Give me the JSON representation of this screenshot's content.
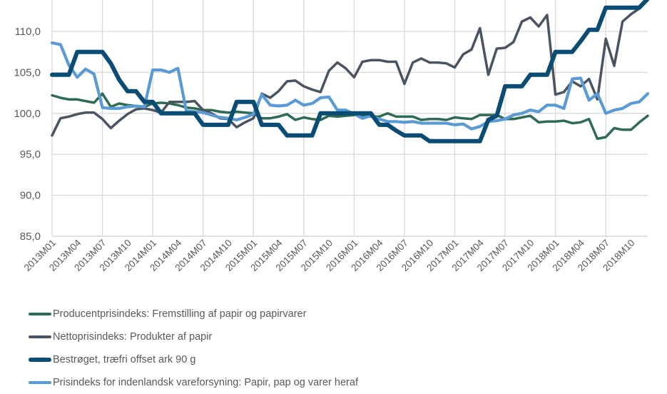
{
  "chart_data": {
    "type": "line",
    "title": "",
    "xlabel": "",
    "ylabel": "",
    "ylim": [
      85,
      113.5
    ],
    "yticks": [
      85,
      90,
      95,
      100,
      105,
      110
    ],
    "ytick_labels": [
      "85,0",
      "90,0",
      "95,0",
      "100,0",
      "105,0",
      "110,0"
    ],
    "grid": true,
    "legend_position": "bottom",
    "x": [
      "2013M01",
      "2013M02",
      "2013M03",
      "2013M04",
      "2013M05",
      "2013M06",
      "2013M07",
      "2013M08",
      "2013M09",
      "2013M10",
      "2013M11",
      "2013M12",
      "2014M01",
      "2014M02",
      "2014M03",
      "2014M04",
      "2014M05",
      "2014M06",
      "2014M07",
      "2014M08",
      "2014M09",
      "2014M10",
      "2014M11",
      "2014M12",
      "2015M01",
      "2015M02",
      "2015M03",
      "2015M04",
      "2015M05",
      "2015M06",
      "2015M07",
      "2015M08",
      "2015M09",
      "2015M10",
      "2015M11",
      "2015M12",
      "2016M01",
      "2016M02",
      "2016M03",
      "2016M04",
      "2016M05",
      "2016M06",
      "2016M07",
      "2016M08",
      "2016M09",
      "2016M10",
      "2016M11",
      "2016M12",
      "2017M01",
      "2017M02",
      "2017M03",
      "2017M04",
      "2017M05",
      "2017M06",
      "2017M07",
      "2017M08",
      "2017M09",
      "2017M10",
      "2017M11",
      "2017M12",
      "2018M01",
      "2018M02",
      "2018M03",
      "2018M04",
      "2018M05",
      "2018M06",
      "2018M07",
      "2018M08",
      "2018M09",
      "2018M10",
      "2018M11",
      "2018M12"
    ],
    "xtick_labels": [
      "2013M01",
      "2013M04",
      "2013M07",
      "2013M10",
      "2014M01",
      "2014M04",
      "2014M07",
      "2014M10",
      "2015M01",
      "2015M04",
      "2015M07",
      "2015M10",
      "2016M01",
      "2016M04",
      "2016M07",
      "2016M10",
      "2017M01",
      "2017M04",
      "2017M07",
      "2017M10",
      "2018M01",
      "2018M04",
      "2018M07",
      "2018M10"
    ],
    "series": [
      {
        "name": "Producentprisindeks: Fremstilling af papir og papirvarer",
        "color": "#2E6B52",
        "values": [
          102.2,
          101.9,
          101.7,
          101.7,
          101.5,
          101.3,
          102.4,
          100.8,
          101.2,
          101.0,
          100.9,
          100.8,
          101.2,
          101.3,
          101.2,
          101.0,
          100.7,
          100.6,
          100.4,
          100.4,
          100.2,
          100.1,
          100.2,
          100.1,
          100.0,
          99.4,
          99.4,
          99.6,
          99.9,
          99.2,
          99.5,
          99.3,
          99.2,
          99.7,
          99.6,
          99.7,
          99.8,
          99.7,
          99.6,
          99.6,
          100.0,
          99.6,
          99.6,
          99.6,
          99.2,
          99.3,
          99.3,
          99.2,
          99.5,
          99.4,
          99.3,
          99.8,
          99.8,
          99.8,
          99.3,
          99.3,
          99.5,
          99.7,
          98.9,
          99.0,
          99.0,
          99.1,
          98.8,
          98.9,
          99.3,
          96.9,
          97.1,
          98.2,
          98.0,
          98.0,
          98.9,
          99.7
        ]
      },
      {
        "name": "Nettoprisindeks: Produkter af papir",
        "color": "#4A5361",
        "values": [
          97.3,
          99.4,
          99.6,
          99.9,
          100.1,
          100.1,
          99.3,
          98.2,
          99.1,
          99.9,
          100.5,
          100.6,
          100.4,
          100.1,
          101.4,
          101.4,
          101.4,
          101.5,
          100.4,
          100.0,
          99.4,
          99.3,
          98.3,
          98.9,
          99.4,
          102.4,
          101.9,
          102.7,
          103.9,
          104.0,
          103.3,
          102.9,
          102.6,
          105.2,
          106.2,
          105.5,
          104.4,
          106.3,
          106.5,
          106.5,
          106.3,
          106.3,
          103.6,
          106.2,
          106.7,
          106.2,
          106.2,
          106.1,
          105.6,
          107.2,
          107.8,
          110.4,
          104.7,
          107.9,
          108.0,
          108.7,
          111.2,
          111.7,
          110.6,
          112.0,
          102.3,
          102.6,
          103.9,
          103.3,
          104.2,
          101.7,
          109.1,
          105.8,
          111.2,
          112.1,
          112.8,
          113.8
        ]
      },
      {
        "name": "Bestrøget, træfri offset ark 90 g",
        "color": "#0A4C74",
        "values": [
          104.7,
          104.7,
          104.7,
          107.5,
          107.5,
          107.5,
          107.5,
          106.1,
          104.1,
          102.7,
          102.7,
          101.4,
          101.4,
          100.0,
          100.0,
          100.0,
          100.0,
          100.0,
          98.6,
          98.6,
          98.6,
          98.6,
          101.4,
          101.4,
          101.4,
          98.6,
          98.6,
          98.6,
          97.3,
          97.3,
          97.3,
          97.3,
          100.0,
          100.0,
          100.0,
          100.0,
          100.0,
          100.0,
          100.0,
          98.6,
          98.6,
          97.9,
          97.3,
          97.3,
          97.3,
          96.6,
          96.6,
          96.6,
          96.6,
          96.6,
          96.6,
          96.6,
          99.2,
          99.7,
          103.3,
          103.3,
          103.3,
          104.7,
          104.7,
          104.7,
          107.5,
          107.5,
          107.5,
          108.8,
          110.2,
          110.2,
          112.9,
          112.9,
          112.9,
          112.9,
          112.9,
          114.0
        ]
      },
      {
        "name": "Prisindeks for indenlandsk vareforsyning: Papir, pap og varer heraf",
        "color": "#5B9BD5",
        "values": [
          108.6,
          108.4,
          105.9,
          104.4,
          105.4,
          104.8,
          100.7,
          100.6,
          100.6,
          100.8,
          100.9,
          100.8,
          105.3,
          105.3,
          105.0,
          105.5,
          100.3,
          100.2,
          100.1,
          99.8,
          99.5,
          99.4,
          99.2,
          99.5,
          99.9,
          102.3,
          101.0,
          100.9,
          101.0,
          101.6,
          101.0,
          101.2,
          101.9,
          102.0,
          100.4,
          100.4,
          99.9,
          99.4,
          99.7,
          99.3,
          99.0,
          99.0,
          98.9,
          99.0,
          98.8,
          98.8,
          98.8,
          98.8,
          98.6,
          98.7,
          98.1,
          98.4,
          99.0,
          99.1,
          99.3,
          99.8,
          100.0,
          100.4,
          100.2,
          101.0,
          101.0,
          100.6,
          104.2,
          104.3,
          101.6,
          102.4,
          100.0,
          100.4,
          100.6,
          101.2,
          101.4,
          102.4
        ]
      }
    ]
  }
}
